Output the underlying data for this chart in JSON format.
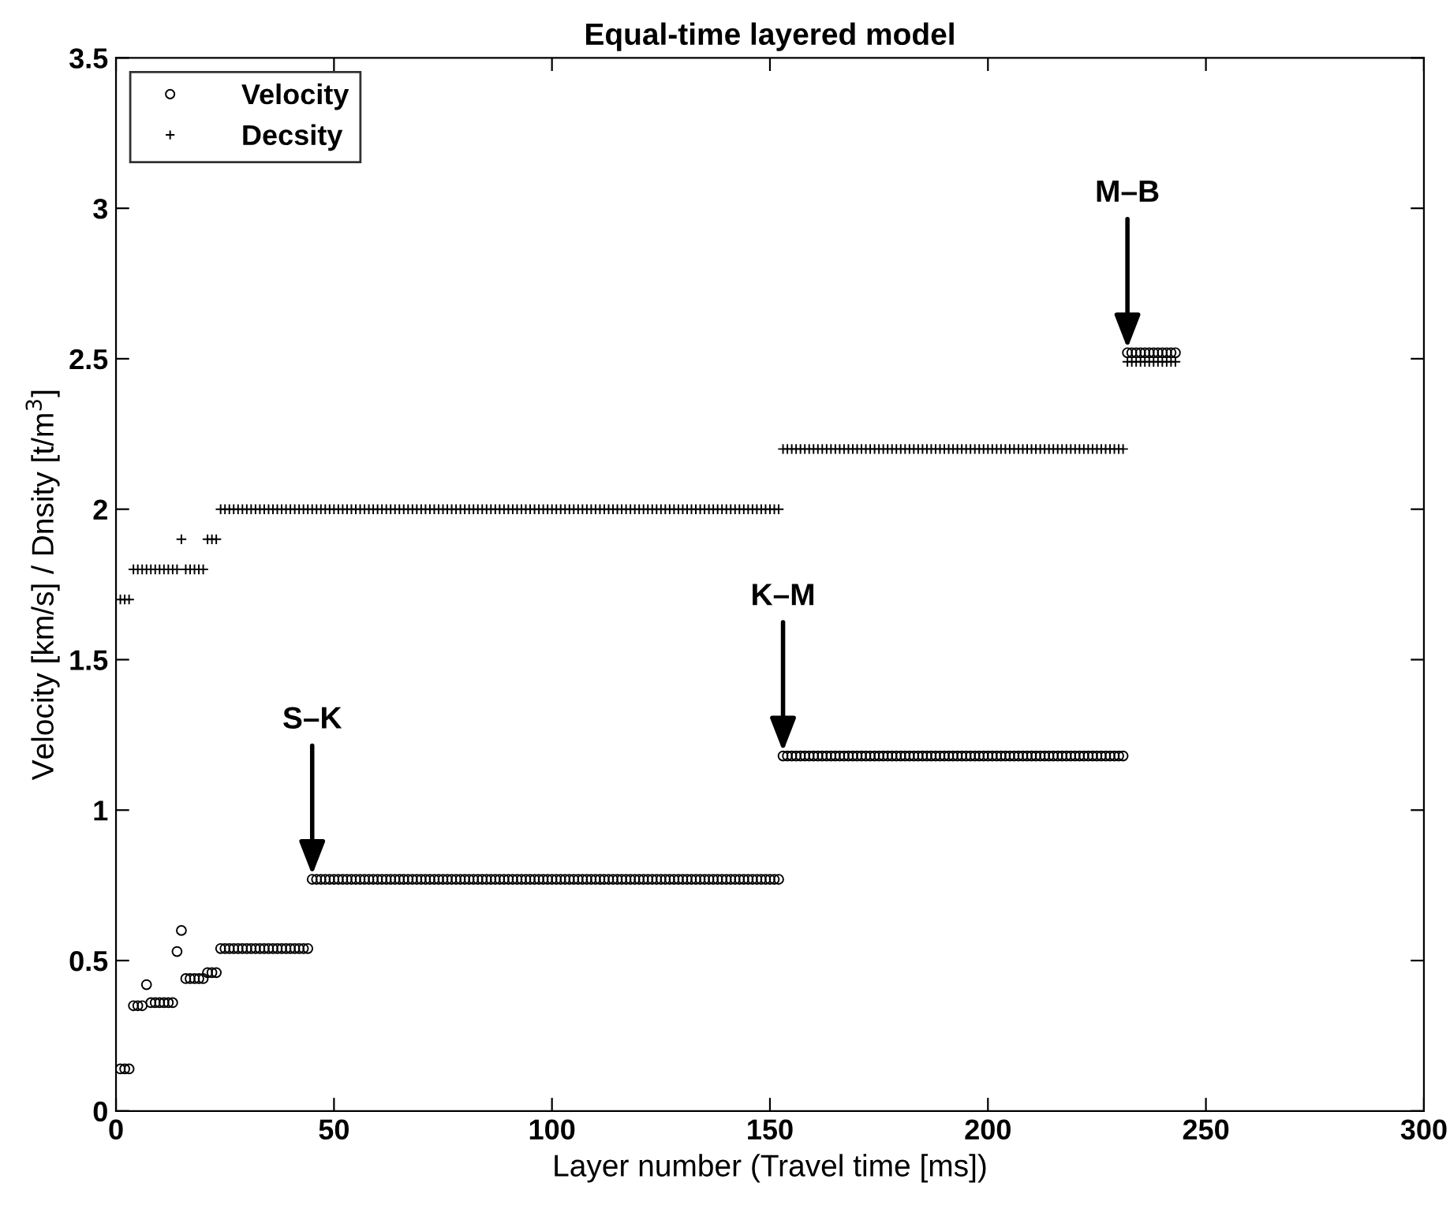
{
  "chart_data": {
    "type": "scatter",
    "title": "Equal-time layered model",
    "xlabel": "Layer number (Travel time [ms])",
    "ylabel": "Velocity [km/s] / Dnsity [t/m$^{3}$]",
    "xlim": [
      0,
      300
    ],
    "xticks": [
      0,
      50,
      100,
      150,
      200,
      250,
      300
    ],
    "ylim": [
      0,
      3.5
    ],
    "yticks": [
      0,
      0.5,
      1,
      1.5,
      2,
      2.5,
      3,
      3.5
    ],
    "grid": false,
    "legend": "top left",
    "x": [
      1,
      2,
      3,
      4,
      5,
      6,
      7,
      8,
      9,
      10,
      11,
      12,
      13,
      14,
      15,
      16,
      17,
      18,
      19,
      20,
      21,
      22,
      23,
      24,
      25,
      26,
      27,
      28,
      29,
      30,
      31,
      32,
      33,
      34,
      35,
      36,
      37,
      38,
      39,
      40,
      41,
      42,
      43,
      44,
      45,
      46,
      47,
      48,
      49,
      50,
      51,
      52,
      53,
      54,
      55,
      56,
      57,
      58,
      59,
      60,
      61,
      62,
      63,
      64,
      65,
      66,
      67,
      68,
      69,
      70,
      71,
      72,
      73,
      74,
      75,
      76,
      77,
      78,
      79,
      80,
      81,
      82,
      83,
      84,
      85,
      86,
      87,
      88,
      89,
      90,
      91,
      92,
      93,
      94,
      95,
      96,
      97,
      98,
      99,
      100,
      101,
      102,
      103,
      104,
      105,
      106,
      107,
      108,
      109,
      110,
      111,
      112,
      113,
      114,
      115,
      116,
      117,
      118,
      119,
      120,
      121,
      122,
      123,
      124,
      125,
      126,
      127,
      128,
      129,
      130,
      131,
      132,
      133,
      134,
      135,
      136,
      137,
      138,
      139,
      140,
      141,
      142,
      143,
      144,
      145,
      146,
      147,
      148,
      149,
      150,
      151,
      152,
      153,
      154,
      155,
      156,
      157,
      158,
      159,
      160,
      161,
      162,
      163,
      164,
      165,
      166,
      167,
      168,
      169,
      170,
      171,
      172,
      173,
      174,
      175,
      176,
      177,
      178,
      179,
      180,
      181,
      182,
      183,
      184,
      185,
      186,
      187,
      188,
      189,
      190,
      191,
      192,
      193,
      194,
      195,
      196,
      197,
      198,
      199,
      200,
      201,
      202,
      203,
      204,
      205,
      206,
      207,
      208,
      209,
      210,
      211,
      212,
      213,
      214,
      215,
      216,
      217,
      218,
      219,
      220,
      221,
      222,
      223,
      224,
      225,
      226,
      227,
      228,
      229,
      230,
      231,
      232,
      233,
      234,
      235,
      236,
      237,
      238,
      239,
      240,
      241,
      242,
      243
    ],
    "series": [
      {
        "name": "Velocity",
        "color": "#000000",
        "marker": "circle",
        "values": [
          0.14,
          0.14,
          0.14,
          0.35,
          0.35,
          0.35,
          0.42,
          0.36,
          0.36,
          0.36,
          0.36,
          0.36,
          0.36,
          0.53,
          0.6,
          0.44,
          0.44,
          0.44,
          0.44,
          0.44,
          0.46,
          0.46,
          0.46,
          0.54,
          0.54,
          0.54,
          0.54,
          0.54,
          0.54,
          0.54,
          0.54,
          0.54,
          0.54,
          0.54,
          0.54,
          0.54,
          0.54,
          0.54,
          0.54,
          0.54,
          0.54,
          0.54,
          0.54,
          0.54,
          0.77,
          0.77,
          0.77,
          0.77,
          0.77,
          0.77,
          0.77,
          0.77,
          0.77,
          0.77,
          0.77,
          0.77,
          0.77,
          0.77,
          0.77,
          0.77,
          0.77,
          0.77,
          0.77,
          0.77,
          0.77,
          0.77,
          0.77,
          0.77,
          0.77,
          0.77,
          0.77,
          0.77,
          0.77,
          0.77,
          0.77,
          0.77,
          0.77,
          0.77,
          0.77,
          0.77,
          0.77,
          0.77,
          0.77,
          0.77,
          0.77,
          0.77,
          0.77,
          0.77,
          0.77,
          0.77,
          0.77,
          0.77,
          0.77,
          0.77,
          0.77,
          0.77,
          0.77,
          0.77,
          0.77,
          0.77,
          0.77,
          0.77,
          0.77,
          0.77,
          0.77,
          0.77,
          0.77,
          0.77,
          0.77,
          0.77,
          0.77,
          0.77,
          0.77,
          0.77,
          0.77,
          0.77,
          0.77,
          0.77,
          0.77,
          0.77,
          0.77,
          0.77,
          0.77,
          0.77,
          0.77,
          0.77,
          0.77,
          0.77,
          0.77,
          0.77,
          0.77,
          0.77,
          0.77,
          0.77,
          0.77,
          0.77,
          0.77,
          0.77,
          0.77,
          0.77,
          0.77,
          0.77,
          0.77,
          0.77,
          0.77,
          0.77,
          0.77,
          0.77,
          0.77,
          0.77,
          0.77,
          0.77,
          1.18,
          1.18,
          1.18,
          1.18,
          1.18,
          1.18,
          1.18,
          1.18,
          1.18,
          1.18,
          1.18,
          1.18,
          1.18,
          1.18,
          1.18,
          1.18,
          1.18,
          1.18,
          1.18,
          1.18,
          1.18,
          1.18,
          1.18,
          1.18,
          1.18,
          1.18,
          1.18,
          1.18,
          1.18,
          1.18,
          1.18,
          1.18,
          1.18,
          1.18,
          1.18,
          1.18,
          1.18,
          1.18,
          1.18,
          1.18,
          1.18,
          1.18,
          1.18,
          1.18,
          1.18,
          1.18,
          1.18,
          1.18,
          1.18,
          1.18,
          1.18,
          1.18,
          1.18,
          1.18,
          1.18,
          1.18,
          1.18,
          1.18,
          1.18,
          1.18,
          1.18,
          1.18,
          1.18,
          1.18,
          1.18,
          1.18,
          1.18,
          1.18,
          1.18,
          1.18,
          1.18,
          1.18,
          1.18,
          1.18,
          1.18,
          1.18,
          1.18,
          1.18,
          1.18,
          2.52,
          2.52,
          2.52,
          2.52,
          2.52,
          2.52,
          2.52,
          2.52,
          2.52,
          2.52,
          2.52,
          2.52
        ]
      },
      {
        "name": "Decsity",
        "color": "#000000",
        "marker": "cross",
        "values": [
          1.7,
          1.7,
          1.7,
          1.8,
          1.8,
          1.8,
          1.8,
          1.8,
          1.8,
          1.8,
          1.8,
          1.8,
          1.8,
          1.8,
          1.9,
          1.8,
          1.8,
          1.8,
          1.8,
          1.8,
          1.9,
          1.9,
          1.9,
          2.0,
          2.0,
          2.0,
          2.0,
          2.0,
          2.0,
          2.0,
          2.0,
          2.0,
          2.0,
          2.0,
          2.0,
          2.0,
          2.0,
          2.0,
          2.0,
          2.0,
          2.0,
          2.0,
          2.0,
          2.0,
          2.0,
          2.0,
          2.0,
          2.0,
          2.0,
          2.0,
          2.0,
          2.0,
          2.0,
          2.0,
          2.0,
          2.0,
          2.0,
          2.0,
          2.0,
          2.0,
          2.0,
          2.0,
          2.0,
          2.0,
          2.0,
          2.0,
          2.0,
          2.0,
          2.0,
          2.0,
          2.0,
          2.0,
          2.0,
          2.0,
          2.0,
          2.0,
          2.0,
          2.0,
          2.0,
          2.0,
          2.0,
          2.0,
          2.0,
          2.0,
          2.0,
          2.0,
          2.0,
          2.0,
          2.0,
          2.0,
          2.0,
          2.0,
          2.0,
          2.0,
          2.0,
          2.0,
          2.0,
          2.0,
          2.0,
          2.0,
          2.0,
          2.0,
          2.0,
          2.0,
          2.0,
          2.0,
          2.0,
          2.0,
          2.0,
          2.0,
          2.0,
          2.0,
          2.0,
          2.0,
          2.0,
          2.0,
          2.0,
          2.0,
          2.0,
          2.0,
          2.0,
          2.0,
          2.0,
          2.0,
          2.0,
          2.0,
          2.0,
          2.0,
          2.0,
          2.0,
          2.0,
          2.0,
          2.0,
          2.0,
          2.0,
          2.0,
          2.0,
          2.0,
          2.0,
          2.0,
          2.0,
          2.0,
          2.0,
          2.0,
          2.0,
          2.0,
          2.0,
          2.0,
          2.0,
          2.0,
          2.0,
          2.0,
          2.2,
          2.2,
          2.2,
          2.2,
          2.2,
          2.2,
          2.2,
          2.2,
          2.2,
          2.2,
          2.2,
          2.2,
          2.2,
          2.2,
          2.2,
          2.2,
          2.2,
          2.2,
          2.2,
          2.2,
          2.2,
          2.2,
          2.2,
          2.2,
          2.2,
          2.2,
          2.2,
          2.2,
          2.2,
          2.2,
          2.2,
          2.2,
          2.2,
          2.2,
          2.2,
          2.2,
          2.2,
          2.2,
          2.2,
          2.2,
          2.2,
          2.2,
          2.2,
          2.2,
          2.2,
          2.2,
          2.2,
          2.2,
          2.2,
          2.2,
          2.2,
          2.2,
          2.2,
          2.2,
          2.2,
          2.2,
          2.2,
          2.2,
          2.2,
          2.2,
          2.2,
          2.2,
          2.2,
          2.2,
          2.2,
          2.2,
          2.2,
          2.2,
          2.2,
          2.2,
          2.2,
          2.2,
          2.2,
          2.2,
          2.2,
          2.2,
          2.2,
          2.2,
          2.2,
          2.49,
          2.49,
          2.49,
          2.49,
          2.49,
          2.49,
          2.49,
          2.49,
          2.49,
          2.49,
          2.49,
          2.49
        ]
      }
    ],
    "annotations": [
      {
        "text": "S–K",
        "x": 45,
        "y": 0.77
      },
      {
        "text": "K–M",
        "x": 153,
        "y": 1.18
      },
      {
        "text": "M–B",
        "x": 232,
        "y": 2.52
      }
    ]
  }
}
